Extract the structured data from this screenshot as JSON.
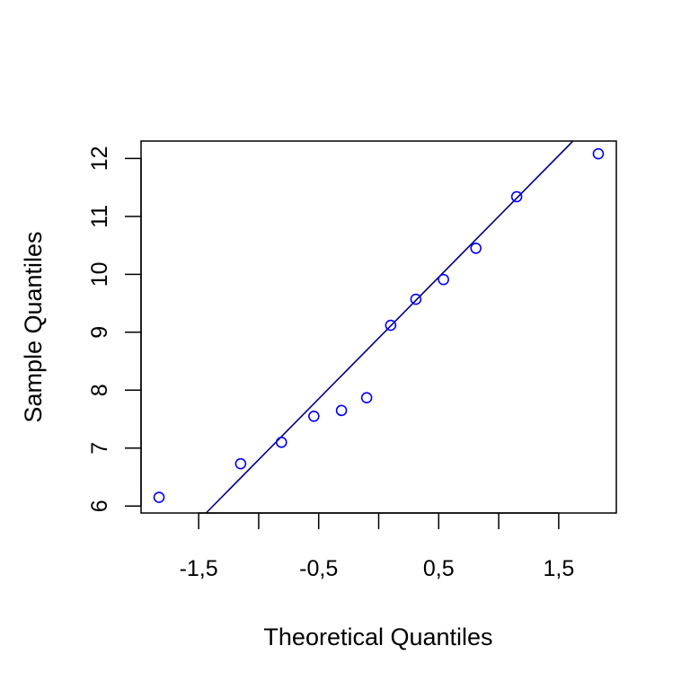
{
  "chart_data": {
    "type": "scatter",
    "title": "",
    "xlabel": "Theoretical Quantiles",
    "ylabel": "Sample Quantiles",
    "xlim": [
      -1.98,
      1.98
    ],
    "ylim": [
      5.88,
      12.3
    ],
    "x_ticks": [
      -2,
      -1.5,
      -1,
      -0.5,
      0,
      0.5,
      1,
      1.5
    ],
    "x_tick_labels": [
      "",
      "-1,5",
      "",
      "-0,5",
      "",
      "0,5",
      "",
      "1,5"
    ],
    "y_ticks": [
      6,
      7,
      8,
      9,
      10,
      11,
      12
    ],
    "y_tick_labels": [
      "6",
      "7",
      "8",
      "9",
      "10",
      "11",
      "12"
    ],
    "grid": false,
    "legend": "none",
    "series": [
      {
        "marker": "open-circle",
        "color": "#0000ff",
        "x": [
          -1.83,
          -1.15,
          -0.81,
          -0.54,
          -0.31,
          -0.1,
          0.1,
          0.31,
          0.54,
          0.81,
          1.15,
          1.83
        ],
        "y": [
          6.15,
          6.73,
          7.1,
          7.55,
          7.65,
          7.87,
          9.12,
          9.57,
          9.91,
          10.45,
          11.34,
          12.08
        ]
      }
    ],
    "reference_line": {
      "color": "#000080",
      "intercept": 8.9,
      "slope": 2.1
    }
  }
}
